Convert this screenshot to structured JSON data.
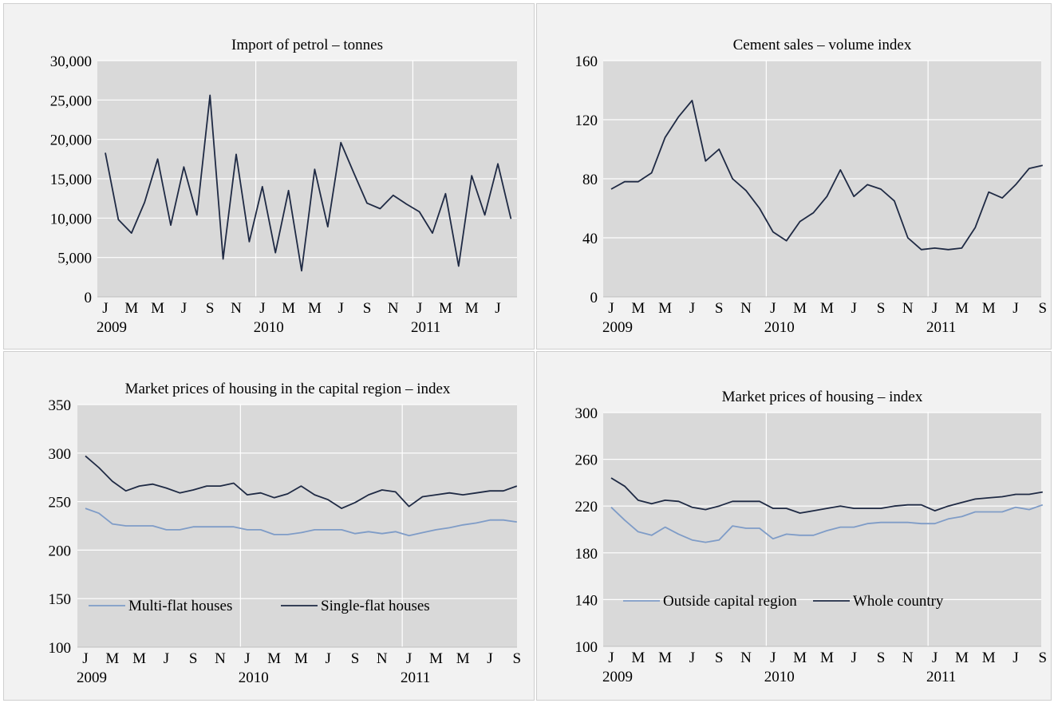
{
  "chart_data": [
    {
      "type": "line",
      "title": "Import of petrol – tonnes",
      "ylim": [
        0,
        30000
      ],
      "yticks": [
        "0",
        "5,000",
        "10,000",
        "15,000",
        "20,000",
        "25,000",
        "30,000"
      ],
      "month_labels": [
        "J",
        "M",
        "M",
        "J",
        "S",
        "N",
        "J",
        "M",
        "M",
        "J",
        "S",
        "N",
        "J",
        "M",
        "M",
        "J"
      ],
      "year_labels": [
        "2009",
        "2010",
        "2011"
      ],
      "x_months": 32,
      "legend": [],
      "series": [
        {
          "name": "",
          "color": "#1f2a44",
          "values": [
            18300,
            9800,
            8100,
            12000,
            17500,
            9100,
            16500,
            10400,
            25600,
            4800,
            18100,
            7000,
            14000,
            5600,
            13500,
            3300,
            16200,
            8900,
            19600,
            15700,
            11900,
            11200,
            12900,
            11800,
            10800,
            8100,
            13100,
            3900,
            15400,
            10400,
            16900,
            9900
          ]
        }
      ]
    },
    {
      "type": "line",
      "title": "Cement sales – volume index",
      "ylim": [
        0,
        160
      ],
      "yticks": [
        "0",
        "40",
        "80",
        "120",
        "160"
      ],
      "month_labels": [
        "J",
        "M",
        "M",
        "J",
        "S",
        "N",
        "J",
        "M",
        "M",
        "J",
        "S",
        "N",
        "J",
        "M",
        "M",
        "J",
        "S"
      ],
      "year_labels": [
        "2009",
        "2010",
        "2011"
      ],
      "x_months": 33,
      "legend": [],
      "series": [
        {
          "name": "",
          "color": "#1f2a44",
          "values": [
            73,
            78,
            78,
            84,
            108,
            122,
            133,
            92,
            100,
            80,
            72,
            60,
            44,
            38,
            51,
            57,
            68,
            86,
            68,
            76,
            73,
            65,
            40,
            32,
            33,
            32,
            33,
            47,
            71,
            67,
            76,
            87,
            89
          ]
        }
      ]
    },
    {
      "type": "line",
      "title": "Market prices of housing in the capital region – index",
      "ylim": [
        100,
        350
      ],
      "yticks": [
        "100",
        "150",
        "200",
        "250",
        "300",
        "350"
      ],
      "month_labels": [
        "J",
        "M",
        "M",
        "J",
        "S",
        "N",
        "J",
        "M",
        "M",
        "J",
        "S",
        "N",
        "J",
        "M",
        "M",
        "J",
        "S"
      ],
      "year_labels": [
        "2009",
        "2010",
        "2011"
      ],
      "x_months": 33,
      "legend": [
        "Multi-flat houses",
        "Single-flat houses"
      ],
      "series": [
        {
          "name": "Multi-flat houses",
          "color": "#7f9cc7",
          "values": [
            243,
            238,
            227,
            225,
            225,
            225,
            221,
            221,
            224,
            224,
            224,
            224,
            221,
            221,
            216,
            216,
            218,
            221,
            221,
            221,
            217,
            219,
            217,
            219,
            215,
            218,
            221,
            223,
            226,
            228,
            231,
            231,
            229
          ]
        },
        {
          "name": "Single-flat houses",
          "color": "#1f2a44",
          "values": [
            297,
            285,
            271,
            261,
            266,
            268,
            264,
            259,
            262,
            266,
            266,
            269,
            257,
            259,
            254,
            258,
            266,
            257,
            252,
            243,
            249,
            257,
            262,
            260,
            245,
            255,
            257,
            259,
            257,
            259,
            261,
            261,
            266
          ]
        }
      ]
    },
    {
      "type": "line",
      "title": "Market prices of housing – index",
      "ylim": [
        100,
        300
      ],
      "yticks": [
        "100",
        "140",
        "180",
        "220",
        "260",
        "300"
      ],
      "month_labels": [
        "J",
        "M",
        "M",
        "J",
        "S",
        "N",
        "J",
        "M",
        "M",
        "J",
        "S",
        "N",
        "J",
        "M",
        "M",
        "J",
        "S"
      ],
      "year_labels": [
        "2009",
        "2010",
        "2011"
      ],
      "x_months": 33,
      "legend": [
        "Outside capital region",
        "Whole country"
      ],
      "series": [
        {
          "name": "Outside capital region",
          "color": "#7f9cc7",
          "values": [
            219,
            208,
            198,
            195,
            202,
            196,
            191,
            189,
            191,
            203,
            201,
            201,
            192,
            196,
            195,
            195,
            199,
            202,
            202,
            205,
            206,
            206,
            206,
            205,
            205,
            209,
            211,
            215,
            215,
            215,
            219,
            217,
            221
          ]
        },
        {
          "name": "Whole country",
          "color": "#1f2a44",
          "values": [
            244,
            237,
            225,
            222,
            225,
            224,
            219,
            217,
            220,
            224,
            224,
            224,
            218,
            218,
            214,
            216,
            218,
            220,
            218,
            218,
            218,
            220,
            221,
            221,
            216,
            220,
            223,
            226,
            227,
            228,
            230,
            230,
            232
          ]
        }
      ]
    }
  ]
}
